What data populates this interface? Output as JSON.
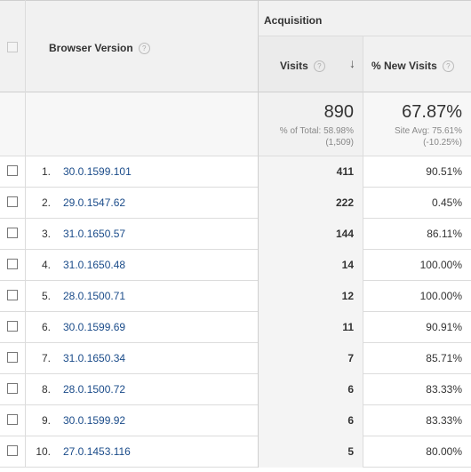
{
  "header": {
    "dimension_label": "Browser Version",
    "group_label": "Acquisition",
    "visits_label": "Visits",
    "new_visits_label": "% New Visits",
    "help_glyph": "?",
    "sort_glyph": "↓"
  },
  "summary": {
    "visits_total": "890",
    "visits_pct_line": "% of Total: 58.98%",
    "visits_pct_paren": "(1,509)",
    "new_visits_total": "67.87%",
    "new_visits_avg_line": "Site Avg: 75.61%",
    "new_visits_avg_paren": "(-10.25%)"
  },
  "rows": [
    {
      "index": "1.",
      "version": "30.0.1599.101",
      "visits": "411",
      "new_visits": "90.51%"
    },
    {
      "index": "2.",
      "version": "29.0.1547.62",
      "visits": "222",
      "new_visits": "0.45%"
    },
    {
      "index": "3.",
      "version": "31.0.1650.57",
      "visits": "144",
      "new_visits": "86.11%"
    },
    {
      "index": "4.",
      "version": "31.0.1650.48",
      "visits": "14",
      "new_visits": "100.00%"
    },
    {
      "index": "5.",
      "version": "28.0.1500.71",
      "visits": "12",
      "new_visits": "100.00%"
    },
    {
      "index": "6.",
      "version": "30.0.1599.69",
      "visits": "11",
      "new_visits": "90.91%"
    },
    {
      "index": "7.",
      "version": "31.0.1650.34",
      "visits": "7",
      "new_visits": "85.71%"
    },
    {
      "index": "8.",
      "version": "28.0.1500.72",
      "visits": "6",
      "new_visits": "83.33%"
    },
    {
      "index": "9.",
      "version": "30.0.1599.92",
      "visits": "6",
      "new_visits": "83.33%"
    },
    {
      "index": "10.",
      "version": "27.0.1453.116",
      "visits": "5",
      "new_visits": "80.00%"
    }
  ]
}
